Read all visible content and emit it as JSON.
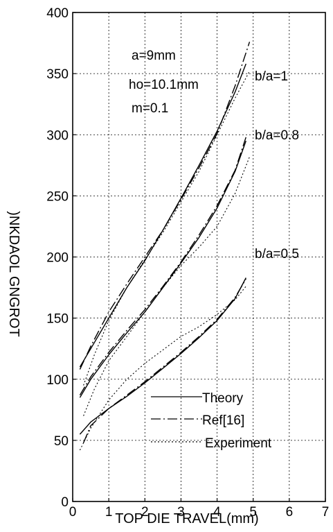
{
  "chart_data": {
    "type": "line",
    "title": "",
    "xlabel": "TOP DIE TRAVEL(mm)",
    "ylabel": ")NKDAOL GNGROT",
    "xlim": [
      0,
      7
    ],
    "ylim": [
      0,
      400
    ],
    "xticks": [
      0,
      1,
      2,
      3,
      4,
      5,
      6,
      7
    ],
    "yticks": [
      0,
      50,
      100,
      150,
      200,
      250,
      300,
      350,
      400
    ],
    "grid": true,
    "legend_position": "bottom-center",
    "annotations": [
      "a=9mm",
      "ho=10.1mm",
      "m=0.1"
    ],
    "curve_labels": [
      "b/a=1",
      "b/a=0.8",
      "b/a=0.5"
    ],
    "legend": [
      {
        "name": "Theory",
        "style": "solid"
      },
      {
        "name": "Ref[16]",
        "style": "dashdot"
      },
      {
        "name": "Experiment",
        "style": "dotted"
      }
    ],
    "series": [
      {
        "name": "Theory",
        "group": "b/a=1",
        "style": "solid",
        "x": [
          0.2,
          0.5,
          1,
          1.5,
          2,
          2.5,
          3,
          3.5,
          4,
          4.5,
          4.8
        ],
        "y": [
          110,
          125,
          150,
          175,
          197,
          222,
          248,
          275,
          303,
          335,
          358
        ]
      },
      {
        "name": "Ref[16]",
        "group": "b/a=1",
        "style": "dashdot",
        "x": [
          0.2,
          0.5,
          1,
          1.5,
          2,
          2.5,
          3,
          3.5,
          4,
          4.5,
          4.9
        ],
        "y": [
          108,
          127,
          155,
          178,
          200,
          222,
          247,
          273,
          301,
          340,
          376
        ]
      },
      {
        "name": "Experiment",
        "group": "b/a=1",
        "style": "dotted",
        "x": [
          0.3,
          0.6,
          1,
          1.5,
          2,
          2.5,
          3,
          3.5,
          4,
          4.5,
          4.9
        ],
        "y": [
          95,
          120,
          148,
          175,
          198,
          220,
          245,
          270,
          300,
          330,
          352
        ]
      },
      {
        "name": "Theory",
        "group": "b/a=0.8",
        "style": "solid",
        "x": [
          0.2,
          0.5,
          1,
          1.5,
          2,
          2.5,
          3,
          3.5,
          4,
          4.5,
          4.8
        ],
        "y": [
          85,
          100,
          120,
          138,
          155,
          175,
          195,
          216,
          240,
          270,
          295
        ]
      },
      {
        "name": "Ref[16]",
        "group": "b/a=0.8",
        "style": "dashdot",
        "x": [
          0.2,
          0.5,
          1,
          1.5,
          2,
          2.5,
          3,
          3.5,
          4,
          4.5,
          4.8
        ],
        "y": [
          87,
          102,
          122,
          140,
          157,
          176,
          196,
          218,
          242,
          271,
          298
        ]
      },
      {
        "name": "Experiment",
        "group": "b/a=0.8",
        "style": "dotted",
        "x": [
          0.3,
          0.6,
          1,
          1.5,
          2,
          2.5,
          3,
          3.5,
          4,
          4.5,
          4.9
        ],
        "y": [
          70,
          92,
          115,
          135,
          155,
          175,
          193,
          208,
          225,
          252,
          282
        ]
      },
      {
        "name": "Theory",
        "group": "b/a=0.5",
        "style": "solid",
        "x": [
          0.2,
          0.5,
          1,
          1.5,
          2,
          2.5,
          3,
          3.5,
          4,
          4.5,
          4.8
        ],
        "y": [
          55,
          65,
          76,
          86,
          97,
          109,
          121,
          134,
          148,
          166,
          183
        ]
      },
      {
        "name": "Ref[16]",
        "group": "b/a=0.5",
        "style": "dashdot",
        "x": [
          0.3,
          0.5,
          1,
          1.5,
          2,
          2.5,
          3,
          3.5,
          4,
          4.5,
          4.8
        ],
        "y": [
          48,
          62,
          76,
          87,
          98,
          110,
          122,
          135,
          149,
          167,
          182
        ]
      },
      {
        "name": "Experiment",
        "group": "b/a=0.5",
        "style": "dotted",
        "x": [
          0.2,
          0.5,
          1,
          1.5,
          2,
          2.5,
          3,
          3.5,
          4,
          4.5,
          4.8
        ],
        "y": [
          42,
          60,
          83,
          100,
          113,
          124,
          135,
          143,
          153,
          165,
          176
        ]
      }
    ]
  }
}
